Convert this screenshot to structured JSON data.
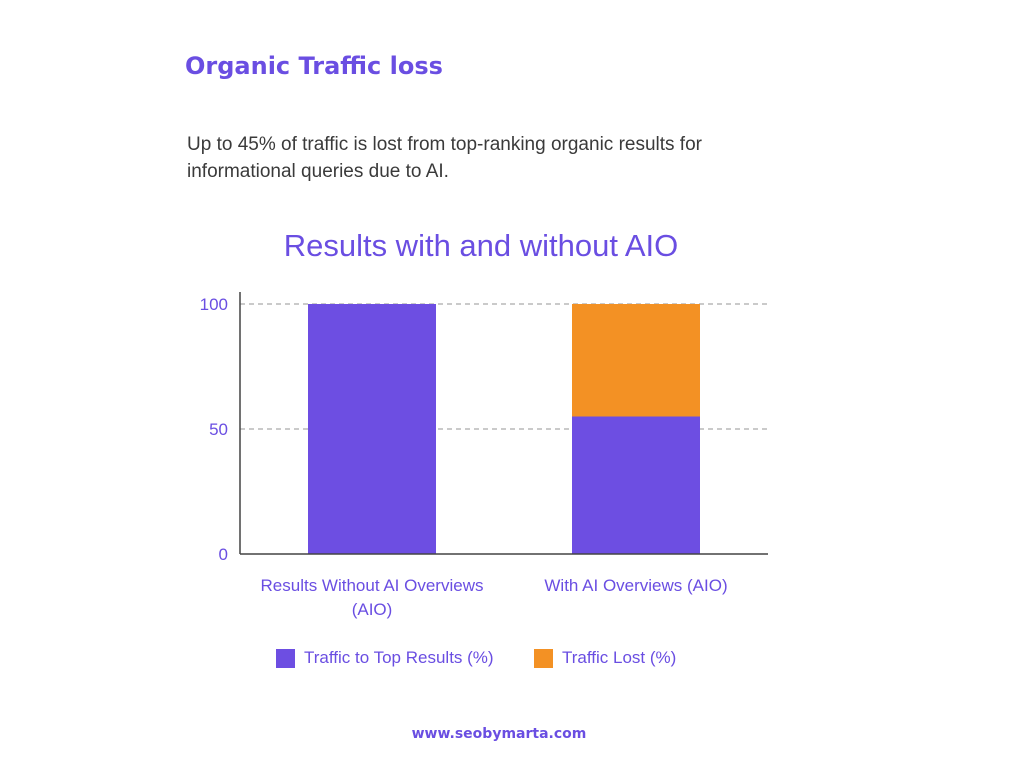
{
  "page": {
    "heading": "Organic Traffic loss",
    "intro": "Up to 45% of traffic is lost from top-ranking organic results for informational queries due to AI.",
    "footer": "www.seobymarta.com"
  },
  "chart_data": {
    "type": "bar",
    "stacked": true,
    "title": "Results with and without AIO",
    "xlabel": "",
    "ylabel": "",
    "categories": [
      "Results Without AI Overviews (AIO)",
      "With AI Overviews (AIO)"
    ],
    "series": [
      {
        "name": "Traffic to Top Results (%)",
        "values": [
          100,
          55
        ],
        "color": "#6d4ee2"
      },
      {
        "name": "Traffic Lost (%)",
        "values": [
          0,
          45
        ],
        "color": "#f39124"
      }
    ],
    "ylim": [
      0,
      100
    ],
    "yticks": [
      "0",
      "50",
      "100"
    ],
    "grid": true,
    "legend_position": "bottom"
  }
}
